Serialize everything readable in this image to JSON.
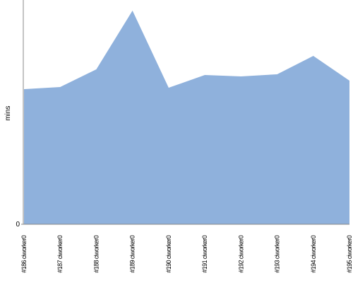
{
  "chart_data": {
    "type": "area",
    "y_label": "mins",
    "categories": [
      "#186 ciworker0",
      "#187 ciworker0",
      "#188 ciworker0",
      "#189 ciworker0",
      "#190 ciworker0",
      "#191 ciworker0",
      "#192 ciworker0",
      "#193 ciworker0",
      "#194 ciworker0",
      "#195 ciworker0"
    ],
    "values": [
      19.1,
      19.4,
      21.9,
      30.2,
      19.3,
      21.1,
      20.9,
      21.2,
      23.8,
      20.3
    ],
    "color": "#8fb1dc",
    "ylim": [
      0,
      31.7
    ],
    "yticks": [
      0
    ]
  }
}
